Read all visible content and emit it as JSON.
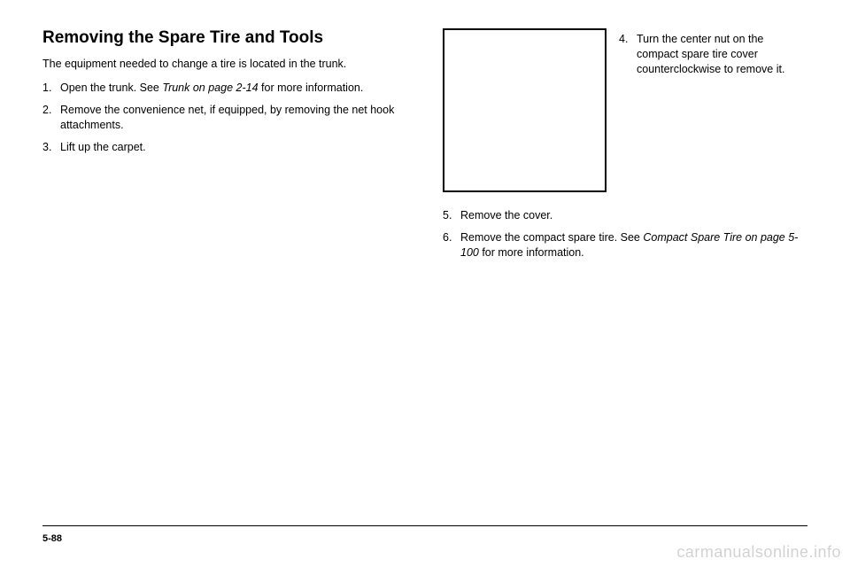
{
  "left": {
    "title": "Removing the Spare Tire and Tools",
    "intro": "The equipment needed to change a tire is located in the trunk.",
    "steps": [
      {
        "n": "1.",
        "pre": "Open the trunk. See ",
        "em": "Trunk on page 2-14",
        "post": " for more information."
      },
      {
        "n": "2.",
        "pre": "Remove the convenience net, if equipped, by removing the net hook attachments.",
        "em": "",
        "post": ""
      },
      {
        "n": "3.",
        "pre": "Lift up the carpet.",
        "em": "",
        "post": ""
      }
    ]
  },
  "right": {
    "step4": {
      "n": "4.",
      "text": "Turn the center nut on the compact spare tire cover counterclockwise to remove it."
    },
    "steps": [
      {
        "n": "5.",
        "pre": "Remove the cover.",
        "em": "",
        "post": ""
      },
      {
        "n": "6.",
        "pre": "Remove the compact spare tire. See ",
        "em": "Compact Spare Tire on page 5-100",
        "post": " for more information."
      }
    ]
  },
  "footer": {
    "pagenum": "5-88",
    "watermark": "carmanualsonline.info"
  }
}
